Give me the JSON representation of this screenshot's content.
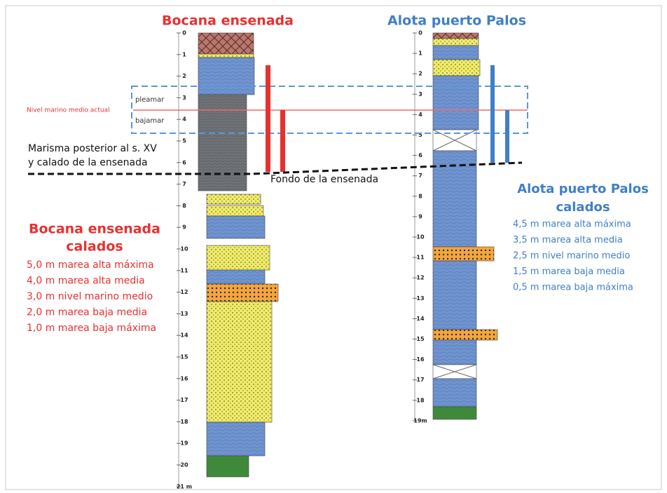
{
  "left_column": {
    "title": "Bocana ensenada",
    "depths": [
      "0",
      "1",
      "2",
      "3",
      "4",
      "5",
      "6",
      "7",
      "8",
      "9",
      "10",
      "11",
      "12",
      "13",
      "14",
      "15",
      "16",
      "17",
      "18",
      "19",
      "20",
      "21 m"
    ]
  },
  "right_column": {
    "title": "Alota puerto Palos",
    "depths": [
      "0",
      "1",
      "2",
      "3",
      "4",
      "5",
      "6",
      "7",
      "8",
      "9",
      "10",
      "11",
      "12",
      "13",
      "14",
      "15",
      "16",
      "17",
      "18",
      "19m"
    ]
  },
  "sea_level": {
    "label": "Nivel marino medio actual",
    "high": "pleamar",
    "low": "bajamar"
  },
  "marsh": [
    "Marisma posterior al s. XV",
    "y calado de la ensenada"
  ],
  "bottom": "Fondo de la ensenada",
  "left_legend": {
    "title": [
      "Bocana ensenada",
      "calados"
    ],
    "lines": [
      "5,0 m marea alta máxima",
      "4,0 m marea alta media",
      "3,0 m nivel marino medio",
      "2,0 m marea baja media",
      "1,0 m marea baja máxima"
    ]
  },
  "right_legend": {
    "title": [
      "Alota puerto Palos",
      "calados"
    ],
    "lines": [
      "4,5 m marea alta máxima",
      "3,5 m marea alta media",
      "2,5 m nivel marino medio",
      "1,5 m marea baja media",
      "0,5 m marea baja máxima"
    ]
  }
}
